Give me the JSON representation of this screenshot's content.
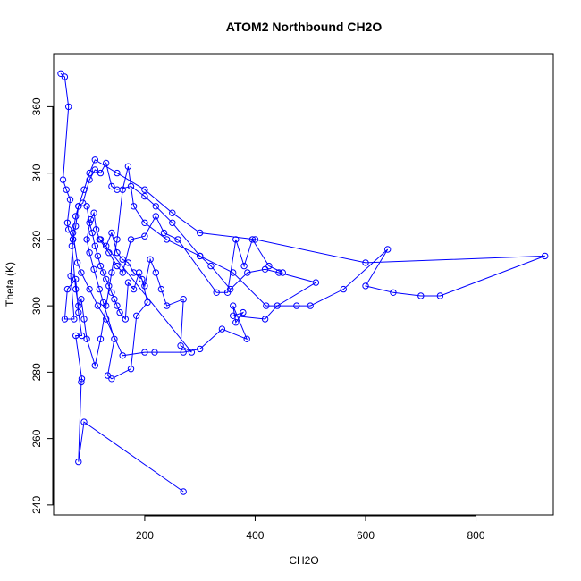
{
  "chart_data": {
    "type": "line",
    "title": "ATOM2 Northbound CH2O",
    "xlabel": "CH2O",
    "ylabel": "Theta (K)",
    "xlim": [
      35,
      940
    ],
    "ylim": [
      237,
      376
    ],
    "x_ticks": [
      200,
      400,
      600,
      800
    ],
    "y_ticks": [
      240,
      260,
      280,
      300,
      320,
      340,
      360
    ],
    "grid": false,
    "color": "#0000ff",
    "markers": "open-circle",
    "series": [
      {
        "points": [
          [
            48,
            370
          ],
          [
            55,
            369
          ],
          [
            62,
            360
          ],
          [
            52,
            338
          ],
          [
            58,
            335
          ],
          [
            65,
            332
          ],
          [
            60,
            325
          ],
          [
            62,
            323
          ],
          [
            70,
            320
          ],
          [
            68,
            318
          ],
          [
            75,
            305
          ],
          [
            80,
            300
          ],
          [
            85,
            302
          ],
          [
            90,
            296
          ],
          [
            95,
            290
          ],
          [
            110,
            282
          ],
          [
            120,
            290
          ],
          [
            130,
            300
          ],
          [
            140,
            310
          ],
          [
            150,
            320
          ],
          [
            160,
            335
          ],
          [
            170,
            342
          ],
          [
            180,
            330
          ],
          [
            200,
            325
          ],
          [
            240,
            320
          ],
          [
            300,
            315
          ],
          [
            360,
            310
          ],
          [
            420,
            300
          ],
          [
            475,
            300
          ],
          [
            500,
            300
          ],
          [
            560,
            305
          ],
          [
            640,
            317
          ],
          [
            600,
            306
          ],
          [
            650,
            304
          ],
          [
            700,
            303
          ],
          [
            735,
            303
          ],
          [
            925,
            315
          ],
          [
            600,
            313
          ],
          [
            400,
            320
          ],
          [
            300,
            322
          ],
          [
            250,
            328
          ],
          [
            200,
            335
          ],
          [
            150,
            340
          ],
          [
            110,
            344
          ],
          [
            100,
            340
          ],
          [
            90,
            335
          ],
          [
            80,
            330
          ],
          [
            75,
            327
          ],
          [
            70,
            322
          ],
          [
            78,
            313
          ],
          [
            85,
            310
          ],
          [
            100,
            305
          ],
          [
            115,
            300
          ],
          [
            130,
            296
          ],
          [
            160,
            285
          ],
          [
            200,
            286
          ],
          [
            218,
            286
          ],
          [
            270,
            286
          ],
          [
            300,
            287
          ],
          [
            340,
            293
          ],
          [
            385,
            290
          ],
          [
            360,
            300
          ],
          [
            365,
            295
          ],
          [
            378,
            298
          ],
          [
            360,
            297
          ],
          [
            418,
            296
          ],
          [
            440,
            300
          ],
          [
            510,
            307
          ],
          [
            443,
            310
          ],
          [
            418,
            311
          ],
          [
            386,
            310
          ],
          [
            355,
            305
          ],
          [
            320,
            312
          ],
          [
            300,
            315
          ],
          [
            250,
            325
          ],
          [
            220,
            330
          ],
          [
            200,
            333
          ],
          [
            175,
            336
          ],
          [
            150,
            335
          ],
          [
            140,
            336
          ],
          [
            130,
            343
          ],
          [
            120,
            340
          ],
          [
            110,
            341
          ],
          [
            100,
            338
          ],
          [
            88,
            331
          ],
          [
            80,
            330
          ],
          [
            75,
            324
          ],
          [
            70,
            320
          ],
          [
            66,
            309
          ],
          [
            72,
            296
          ],
          [
            55,
            296
          ],
          [
            60,
            305
          ],
          [
            75,
            308
          ],
          [
            80,
            298
          ],
          [
            86,
            291
          ],
          [
            75,
            291
          ],
          [
            86,
            278
          ],
          [
            85,
            277
          ],
          [
            80,
            253
          ],
          [
            90,
            265
          ],
          [
            270,
            244
          ]
        ]
      },
      {
        "points": [
          [
            95,
            330
          ],
          [
            100,
            325
          ],
          [
            105,
            322
          ],
          [
            110,
            318
          ],
          [
            115,
            315
          ],
          [
            120,
            312
          ],
          [
            125,
            310
          ],
          [
            130,
            308
          ],
          [
            135,
            306
          ],
          [
            140,
            304
          ],
          [
            145,
            302
          ],
          [
            150,
            300
          ],
          [
            155,
            298
          ],
          [
            165,
            296
          ],
          [
            170,
            307
          ],
          [
            180,
            305
          ],
          [
            190,
            310
          ],
          [
            200,
            306
          ],
          [
            210,
            314
          ],
          [
            220,
            310
          ],
          [
            230,
            305
          ],
          [
            240,
            300
          ],
          [
            270,
            302
          ],
          [
            265,
            288
          ],
          [
            285,
            286
          ],
          [
            120,
            320
          ],
          [
            130,
            318
          ],
          [
            140,
            322
          ],
          [
            150,
            316
          ],
          [
            160,
            314
          ],
          [
            170,
            313
          ],
          [
            180,
            310
          ],
          [
            195,
            308
          ],
          [
            205,
            301
          ],
          [
            185,
            297
          ],
          [
            175,
            281
          ],
          [
            140,
            278
          ],
          [
            133,
            279
          ],
          [
            145,
            290
          ],
          [
            125,
            301
          ],
          [
            118,
            305
          ],
          [
            108,
            311
          ],
          [
            100,
            316
          ],
          [
            95,
            320
          ],
          [
            102,
            326
          ],
          [
            108,
            328
          ],
          [
            112,
            323
          ],
          [
            118,
            320
          ],
          [
            135,
            316
          ],
          [
            150,
            312
          ],
          [
            160,
            310
          ],
          [
            175,
            320
          ],
          [
            200,
            321
          ],
          [
            220,
            327
          ],
          [
            235,
            322
          ],
          [
            260,
            320
          ],
          [
            330,
            304
          ],
          [
            350,
            304
          ],
          [
            365,
            320
          ],
          [
            380,
            312
          ],
          [
            395,
            320
          ],
          [
            425,
            312
          ],
          [
            450,
            310
          ]
        ]
      }
    ]
  }
}
